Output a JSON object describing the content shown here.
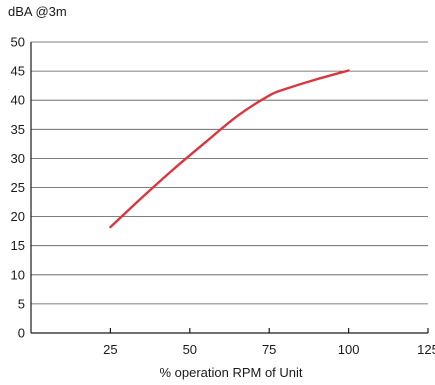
{
  "chart_data": {
    "type": "line",
    "ylabel": "dBA @3m",
    "xlabel": "% operation RPM of Unit",
    "xlim": [
      0,
      125
    ],
    "ylim": [
      0,
      50
    ],
    "xticks": [
      25,
      50,
      75,
      100,
      125
    ],
    "yticks": [
      0,
      5,
      10,
      15,
      20,
      25,
      30,
      35,
      40,
      45,
      50
    ],
    "grid": "horizontal",
    "series": [
      {
        "color": "#d9363e",
        "x": [
          25,
          35,
          45,
          55,
          65,
          75,
          80,
          90,
          100
        ],
        "y": [
          18.2,
          23.3,
          28.2,
          32.8,
          37.3,
          40.8,
          41.9,
          43.6,
          45.1
        ]
      }
    ]
  }
}
